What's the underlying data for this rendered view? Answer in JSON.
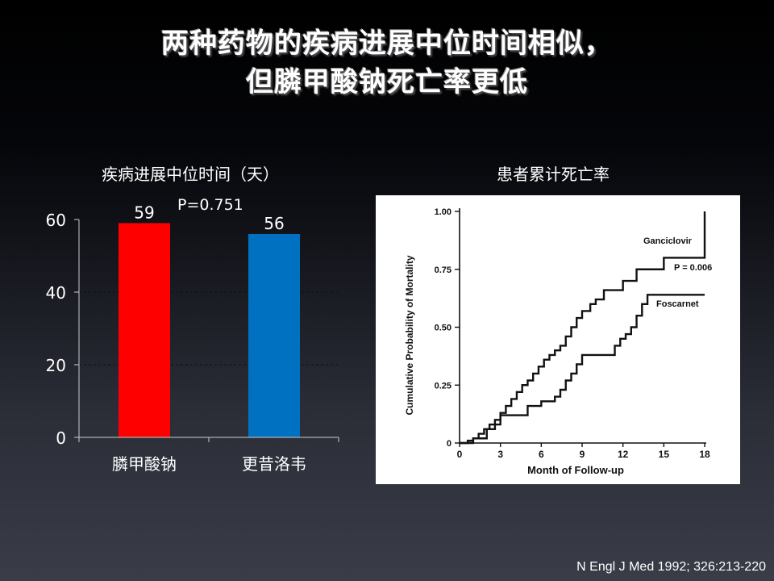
{
  "slide": {
    "title_line1": "两种药物的疾病进展中位时间相似，",
    "title_line2": "但膦甲酸钠死亡率更低",
    "citation": "N Engl J Med 1992; 326:213-220"
  },
  "chart_data": [
    {
      "type": "bar",
      "title": "疾病进展中位时间（天）",
      "categories": [
        "膦甲酸钠",
        "更昔洛韦"
      ],
      "values": [
        59,
        56
      ],
      "data_labels": [
        "59",
        "56"
      ],
      "colors": [
        "#ff0000",
        "#0070c0"
      ],
      "ylim": [
        0,
        60
      ],
      "yticks": [
        0,
        20,
        40,
        60
      ],
      "grid": "dashed horizontal at 20 and 40",
      "annotation": "P=0.751"
    },
    {
      "type": "line",
      "title": "患者累计死亡率",
      "xlabel": "Month of Follow-up",
      "ylabel": "Cumulative Probability of Mortality",
      "xlim": [
        0,
        18
      ],
      "ylim": [
        0,
        1.0
      ],
      "xticks": [
        0,
        3,
        6,
        9,
        12,
        15,
        18
      ],
      "yticks": [
        "0",
        "0.25",
        "0.50",
        "0.75",
        "1.00"
      ],
      "annotation": "P = 0.006",
      "series": [
        {
          "name": "Ganciclovir",
          "x": [
            0,
            0.6,
            1.0,
            1.4,
            1.8,
            2.2,
            2.6,
            3.0,
            3.4,
            3.8,
            4.2,
            4.6,
            5.0,
            5.4,
            5.8,
            6.2,
            6.6,
            7.0,
            7.4,
            7.8,
            8.2,
            8.6,
            9.0,
            9.6,
            10.0,
            10.6,
            11.0,
            11.5,
            12.0,
            12.5,
            13.0,
            13.5,
            14.0,
            14.5,
            15.0,
            15.5,
            16.0,
            16.5,
            17.0,
            17.5,
            18.0,
            18.0
          ],
          "y": [
            0,
            0.01,
            0.02,
            0.04,
            0.06,
            0.08,
            0.1,
            0.13,
            0.16,
            0.19,
            0.22,
            0.25,
            0.27,
            0.3,
            0.33,
            0.36,
            0.38,
            0.4,
            0.42,
            0.46,
            0.5,
            0.54,
            0.57,
            0.6,
            0.62,
            0.66,
            0.66,
            0.66,
            0.7,
            0.7,
            0.75,
            0.75,
            0.75,
            0.75,
            0.8,
            0.8,
            0.8,
            0.8,
            0.8,
            0.8,
            0.83,
            1.0
          ]
        },
        {
          "name": "Foscarnet",
          "x": [
            0,
            1.0,
            2.0,
            2.6,
            3.0,
            4.0,
            5.0,
            6.0,
            7.0,
            7.4,
            7.8,
            8.2,
            8.6,
            9.0,
            10.0,
            11.0,
            11.4,
            11.8,
            12.2,
            12.6,
            13.0,
            13.4,
            13.8,
            14.5,
            15.5,
            16.5,
            18.0
          ],
          "y": [
            0,
            0.02,
            0.06,
            0.08,
            0.12,
            0.12,
            0.16,
            0.18,
            0.2,
            0.23,
            0.27,
            0.3,
            0.34,
            0.38,
            0.38,
            0.38,
            0.42,
            0.45,
            0.47,
            0.5,
            0.55,
            0.6,
            0.64,
            0.64,
            0.64,
            0.64,
            0.64
          ]
        }
      ]
    }
  ]
}
